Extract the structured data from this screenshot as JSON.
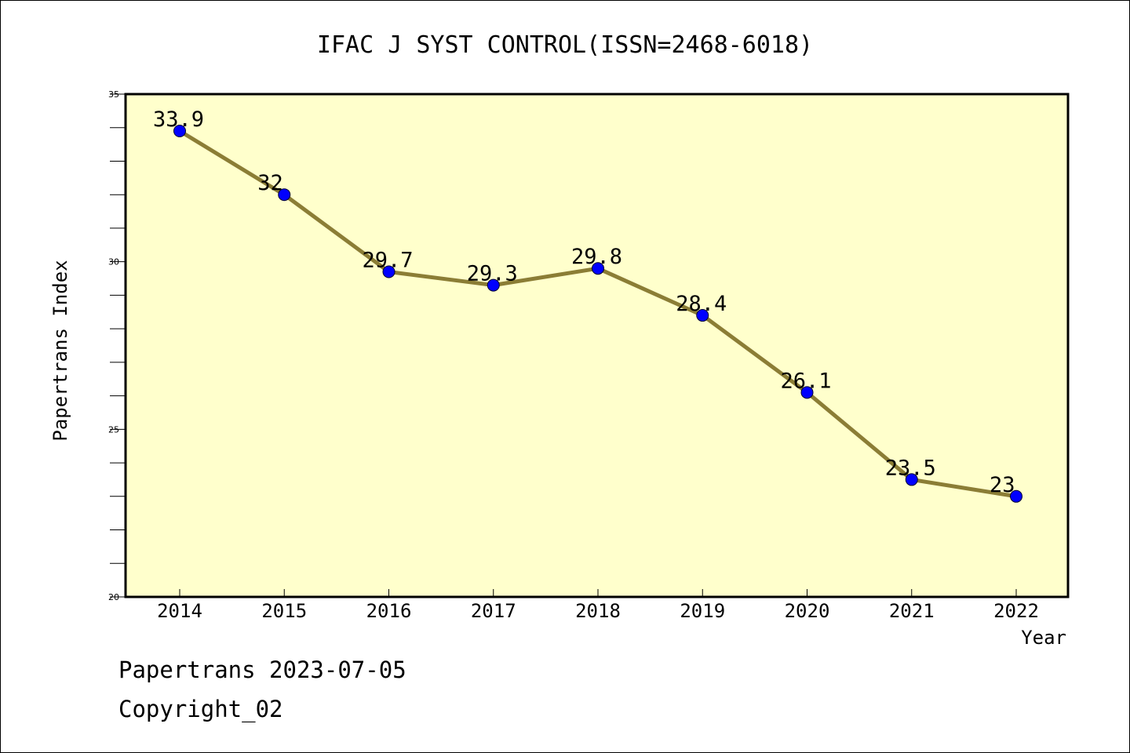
{
  "chart_data": {
    "type": "line",
    "title": "IFAC J SYST CONTROL(ISSN=2468-6018)",
    "xlabel": "Year",
    "ylabel": "Papertrans Index",
    "categories": [
      "2014",
      "2015",
      "2016",
      "2017",
      "2018",
      "2019",
      "2020",
      "2021",
      "2022"
    ],
    "values": [
      33.9,
      32,
      29.7,
      29.3,
      29.8,
      28.4,
      26.1,
      23.5,
      23
    ],
    "value_labels": [
      "33.9",
      "32",
      "29.7",
      "29.3",
      "29.8",
      "28.4",
      "26.1",
      "23.5",
      "23"
    ],
    "ylim": [
      20,
      35
    ],
    "yticks": [
      "20",
      "25",
      "30",
      "35"
    ],
    "minor_tick_step": 1,
    "grid": false,
    "legend": "none",
    "colors": {
      "plot_background": "#ffffcc",
      "line": "#8b7d35",
      "marker": "#0000ff",
      "axis": "#000000"
    }
  },
  "footer": {
    "date_line": "Papertrans 2023-07-05",
    "copyright_line": "Copyright_02"
  }
}
